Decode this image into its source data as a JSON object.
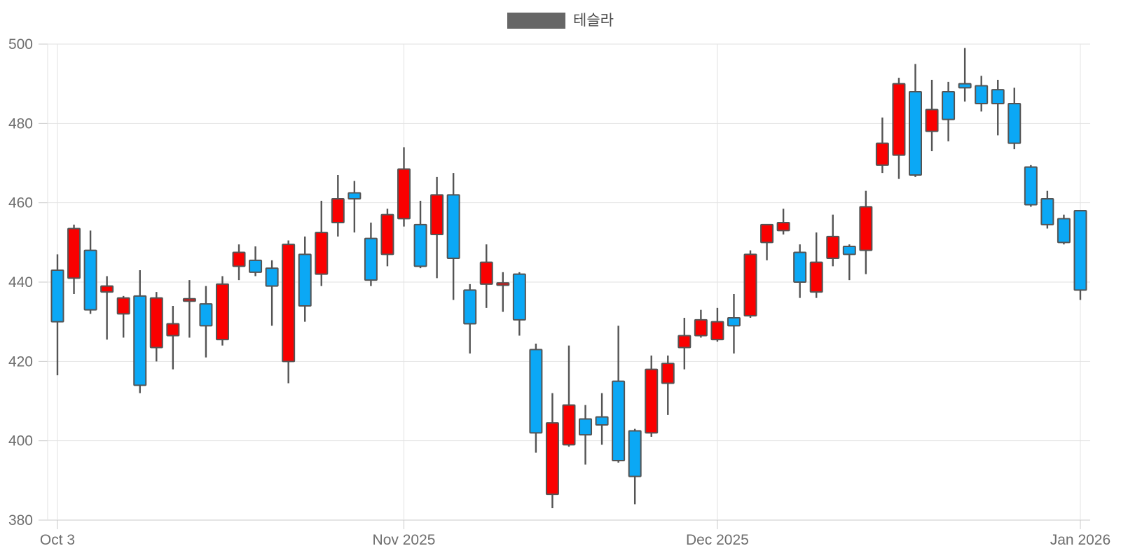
{
  "chart_data": {
    "type": "candlestick",
    "legend": {
      "label": "테슬라",
      "marker_color": "#666666"
    },
    "ylim": [
      380,
      500
    ],
    "y_axis": {
      "ticks": [
        380,
        400,
        420,
        440,
        460,
        480,
        500
      ]
    },
    "x_axis": {
      "ticks": [
        {
          "label": "Oct 3",
          "candle_index": 0
        },
        {
          "label": "Nov 2025",
          "candle_index": 21
        },
        {
          "label": "Dec 2025",
          "candle_index": 40
        },
        {
          "label": "Jan 2026",
          "candle_index": 62
        }
      ]
    },
    "colors": {
      "up": "#fa0000",
      "down": "#0ba8f5",
      "outline": "#545454",
      "grid": "#e2e2e2",
      "axis_line": "#c9c9c9",
      "axis_text": "#6e6e6e"
    },
    "grid": true,
    "legend_position": "top-center",
    "candles": [
      {
        "date": "Oct 3",
        "open": 443,
        "high": 447,
        "low": 416.5,
        "close": 430
      },
      {
        "date": "Oct 6",
        "open": 441,
        "high": 454.5,
        "low": 437,
        "close": 453.5
      },
      {
        "date": "Oct 7",
        "open": 448,
        "high": 453,
        "low": 432,
        "close": 433
      },
      {
        "date": "Oct 8",
        "open": 437.5,
        "high": 441.5,
        "low": 425.5,
        "close": 439
      },
      {
        "date": "Oct 9",
        "open": 432,
        "high": 436.5,
        "low": 426,
        "close": 436
      },
      {
        "date": "Oct 10",
        "open": 436.5,
        "high": 443,
        "low": 412,
        "close": 414
      },
      {
        "date": "Oct 13",
        "open": 423.5,
        "high": 437.5,
        "low": 420,
        "close": 436
      },
      {
        "date": "Oct 14",
        "open": 426.5,
        "high": 434,
        "low": 418,
        "close": 429.5
      },
      {
        "date": "Oct 15",
        "open": 435.2,
        "high": 440.5,
        "low": 426,
        "close": 435.8
      },
      {
        "date": "Oct 16",
        "open": 434.5,
        "high": 439,
        "low": 421,
        "close": 429
      },
      {
        "date": "Oct 17",
        "open": 425.5,
        "high": 441.5,
        "low": 424,
        "close": 439.5
      },
      {
        "date": "Oct 20",
        "open": 444,
        "high": 449.5,
        "low": 440.5,
        "close": 447.5
      },
      {
        "date": "Oct 21",
        "open": 445.5,
        "high": 449,
        "low": 441.5,
        "close": 442.5
      },
      {
        "date": "Oct 22",
        "open": 443.5,
        "high": 445.5,
        "low": 429,
        "close": 439
      },
      {
        "date": "Oct 23",
        "open": 420,
        "high": 450.5,
        "low": 414.5,
        "close": 449.5
      },
      {
        "date": "Oct 24",
        "open": 447,
        "high": 451.5,
        "low": 430,
        "close": 434
      },
      {
        "date": "Oct 27",
        "open": 442,
        "high": 460.5,
        "low": 439,
        "close": 452.5
      },
      {
        "date": "Oct 28",
        "open": 455,
        "high": 467,
        "low": 451.5,
        "close": 461
      },
      {
        "date": "Oct 29",
        "open": 462.5,
        "high": 465.5,
        "low": 452.5,
        "close": 461
      },
      {
        "date": "Oct 30",
        "open": 451,
        "high": 455,
        "low": 439,
        "close": 440.5
      },
      {
        "date": "Oct 31",
        "open": 447,
        "high": 458.5,
        "low": 444,
        "close": 457
      },
      {
        "date": "Nov 3",
        "open": 456,
        "high": 474,
        "low": 454,
        "close": 468.5
      },
      {
        "date": "Nov 4",
        "open": 454.5,
        "high": 460.5,
        "low": 443.5,
        "close": 444
      },
      {
        "date": "Nov 5",
        "open": 452,
        "high": 466.5,
        "low": 441,
        "close": 462
      },
      {
        "date": "Nov 6",
        "open": 462,
        "high": 467.5,
        "low": 435.5,
        "close": 446
      },
      {
        "date": "Nov 7",
        "open": 438,
        "high": 439.5,
        "low": 422,
        "close": 429.5
      },
      {
        "date": "Nov 10",
        "open": 439.5,
        "high": 449.5,
        "low": 433.5,
        "close": 445
      },
      {
        "date": "Nov 11",
        "open": 439.2,
        "high": 442.5,
        "low": 432.5,
        "close": 439.8
      },
      {
        "date": "Nov 12",
        "open": 442,
        "high": 442.5,
        "low": 426.5,
        "close": 430.5
      },
      {
        "date": "Nov 13",
        "open": 423,
        "high": 424.5,
        "low": 397,
        "close": 402
      },
      {
        "date": "Nov 14",
        "open": 386.5,
        "high": 412,
        "low": 383,
        "close": 404.5
      },
      {
        "date": "Nov 17",
        "open": 399,
        "high": 424,
        "low": 398.5,
        "close": 409
      },
      {
        "date": "Nov 18",
        "open": 405.5,
        "high": 409,
        "low": 394,
        "close": 401.5
      },
      {
        "date": "Nov 19",
        "open": 406,
        "high": 412,
        "low": 399,
        "close": 404
      },
      {
        "date": "Nov 20",
        "open": 415,
        "high": 429,
        "low": 394.5,
        "close": 395
      },
      {
        "date": "Nov 21",
        "open": 402.5,
        "high": 403,
        "low": 384,
        "close": 391
      },
      {
        "date": "Nov 24",
        "open": 402,
        "high": 421.5,
        "low": 401,
        "close": 418
      },
      {
        "date": "Nov 25",
        "open": 414.5,
        "high": 421.5,
        "low": 406.5,
        "close": 419.5
      },
      {
        "date": "Nov 26",
        "open": 423.5,
        "high": 431,
        "low": 418,
        "close": 426.5
      },
      {
        "date": "Nov 28",
        "open": 426.5,
        "high": 433,
        "low": 426,
        "close": 430.5
      },
      {
        "date": "Dec 1",
        "open": 425.5,
        "high": 433.5,
        "low": 425,
        "close": 430
      },
      {
        "date": "Dec 2",
        "open": 431,
        "high": 437,
        "low": 422,
        "close": 429
      },
      {
        "date": "Dec 3",
        "open": 431.5,
        "high": 448,
        "low": 431,
        "close": 447
      },
      {
        "date": "Dec 4",
        "open": 450,
        "high": 454.5,
        "low": 445.5,
        "close": 454.5
      },
      {
        "date": "Dec 5",
        "open": 453,
        "high": 458.5,
        "low": 452,
        "close": 455
      },
      {
        "date": "Dec 8",
        "open": 447.5,
        "high": 449.5,
        "low": 436,
        "close": 440
      },
      {
        "date": "Dec 9",
        "open": 437.5,
        "high": 452.5,
        "low": 436,
        "close": 445
      },
      {
        "date": "Dec 10",
        "open": 446,
        "high": 457,
        "low": 444,
        "close": 451.5
      },
      {
        "date": "Dec 11",
        "open": 449,
        "high": 449.5,
        "low": 440.5,
        "close": 447
      },
      {
        "date": "Dec 12",
        "open": 448,
        "high": 463,
        "low": 442,
        "close": 459
      },
      {
        "date": "Dec 15",
        "open": 469.5,
        "high": 481.5,
        "low": 467.5,
        "close": 475
      },
      {
        "date": "Dec 16",
        "open": 472,
        "high": 491.5,
        "low": 466,
        "close": 490
      },
      {
        "date": "Dec 17",
        "open": 488,
        "high": 495,
        "low": 466.5,
        "close": 467
      },
      {
        "date": "Dec 18",
        "open": 478,
        "high": 491,
        "low": 473,
        "close": 483.5
      },
      {
        "date": "Dec 19",
        "open": 488,
        "high": 490.5,
        "low": 475.5,
        "close": 481
      },
      {
        "date": "Dec 22",
        "open": 490,
        "high": 499,
        "low": 485.5,
        "close": 489
      },
      {
        "date": "Dec 23",
        "open": 489.5,
        "high": 492,
        "low": 483,
        "close": 485
      },
      {
        "date": "Dec 24",
        "open": 488.5,
        "high": 491,
        "low": 477,
        "close": 485
      },
      {
        "date": "Dec 26",
        "open": 485,
        "high": 489,
        "low": 473.5,
        "close": 475
      },
      {
        "date": "Dec 29",
        "open": 469,
        "high": 469.5,
        "low": 459,
        "close": 459.5
      },
      {
        "date": "Dec 30",
        "open": 461,
        "high": 463,
        "low": 453.5,
        "close": 454.5
      },
      {
        "date": "Dec 31",
        "open": 456,
        "high": 457,
        "low": 449.5,
        "close": 450
      },
      {
        "date": "Jan 2",
        "open": 458,
        "high": 458,
        "low": 435.5,
        "close": 438
      }
    ]
  }
}
